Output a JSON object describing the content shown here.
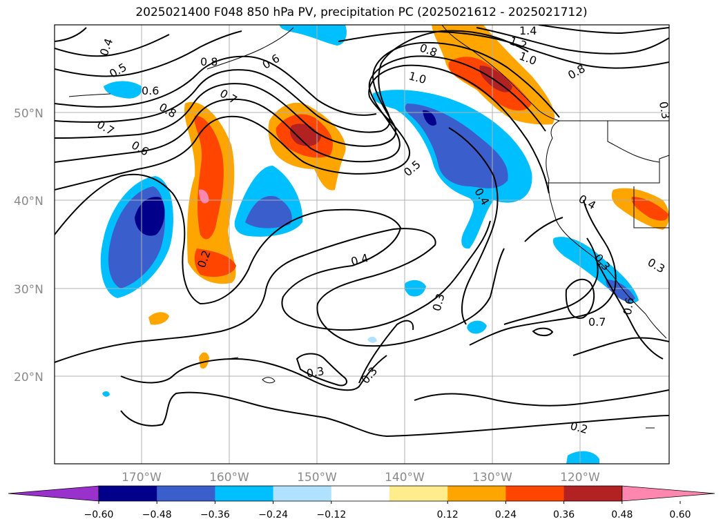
{
  "title": "2025021400 F048 850 hPa PV, precipitation PC (2025021612 - 2025021712)",
  "lat_labels": [
    "50°N",
    "40°N",
    "30°N",
    "20°N"
  ],
  "lon_labels": [
    "170°W",
    "160°W",
    "150°W",
    "140°W",
    "130°W",
    "120°W"
  ],
  "contour_labels": [
    "0.4",
    "0.5",
    "0.6",
    "0.8",
    "0.7",
    "0.6",
    "0.8",
    "0.7",
    "0.6",
    "1.0",
    "1.2",
    "1.4",
    "1.0",
    "0.8",
    "0.8",
    "0.5",
    "0.4",
    "0.4",
    "0.3",
    "0.2",
    "0.3",
    "0.3",
    "0.3",
    "0.2",
    "0.7",
    "0.4",
    "0.3",
    "0.6",
    "0.3"
  ],
  "colorbar": {
    "ticks": [
      "−0.60",
      "−0.48",
      "−0.36",
      "−0.24",
      "−0.12",
      "0.12",
      "0.24",
      "0.36",
      "0.48",
      "0.60"
    ],
    "colors": [
      "#9932cc",
      "#00008b",
      "#3a5fcd",
      "#00bfff",
      "#b0e2ff",
      "#ffffff",
      "#ffec8b",
      "#ffa500",
      "#ff4500",
      "#b22222",
      "#ff86ae"
    ]
  }
}
